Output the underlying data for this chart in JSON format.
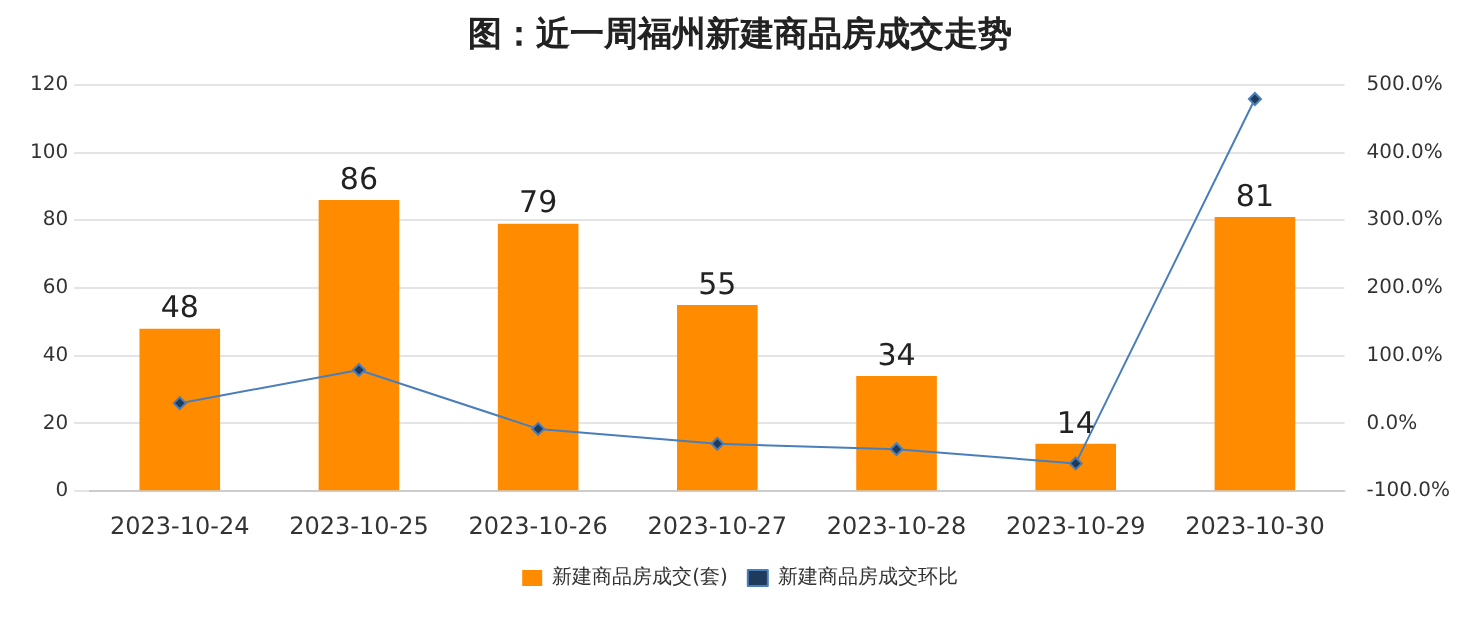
{
  "chart_data": {
    "type": "bar",
    "title": "图：近一周福州新建商品房成交走势",
    "categories": [
      "2023-10-24",
      "2023-10-25",
      "2023-10-26",
      "2023-10-27",
      "2023-10-28",
      "2023-10-29",
      "2023-10-30"
    ],
    "series": [
      {
        "name": "新建商品房成交(套)",
        "color": "#ff8c00",
        "values": [
          48,
          86,
          79,
          55,
          34,
          14,
          81
        ],
        "value_labels": [
          "48",
          "86",
          "79",
          "55",
          "34",
          "14",
          "81"
        ]
      },
      {
        "name": "新建商品房成交环比",
        "type": "line",
        "axis": "y2",
        "color": "#4a7ebb",
        "values": [
          30,
          79,
          -8,
          -30,
          -38,
          -59,
          479
        ]
      }
    ],
    "ylim": [
      0,
      120
    ],
    "yticks": [
      0,
      20,
      40,
      60,
      80,
      100,
      120
    ],
    "y2lim": [
      -100,
      500
    ],
    "y2ticks": [
      {
        "value": -100,
        "label": "-100.0%"
      },
      {
        "value": 0,
        "label": "0.0%"
      },
      {
        "value": 100,
        "label": "100.0%"
      },
      {
        "value": 200,
        "label": "200.0%"
      },
      {
        "value": 300,
        "label": "300.0%"
      },
      {
        "value": 400,
        "label": "400.0%"
      },
      {
        "value": 500,
        "label": "500.0%"
      }
    ],
    "grid": "y",
    "legend": "bottom",
    "marker": "diamond",
    "line_style": "solid"
  }
}
